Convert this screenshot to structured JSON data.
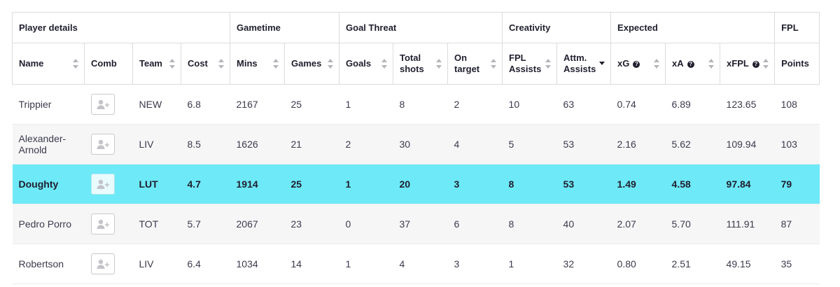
{
  "groups": {
    "player_details": "Player details",
    "gametime": "Gametime",
    "goal_threat": "Goal Threat",
    "creativity": "Creativity",
    "expected": "Expected",
    "fpl": "FPL"
  },
  "columns": {
    "name": "Name",
    "comb": "Comb",
    "team": "Team",
    "cost": "Cost",
    "mins": "Mins",
    "games": "Games",
    "goals": "Goals",
    "total_shots": "Total shots",
    "on_target": "On target",
    "fpl_assists": "FPL Assists",
    "attm_assists": "Attm. Assists",
    "xg": "xG",
    "xa": "xA",
    "xfpl": "xFPL",
    "points": "Points"
  },
  "help_glyph": "?",
  "sort_column": "attm_assists",
  "sort_direction": "descending",
  "highlight_color": "#6ee9f7",
  "rows": [
    {
      "name": "Trippier",
      "team": "NEW",
      "cost": "6.8",
      "mins": "2167",
      "games": "25",
      "goals": "1",
      "total_shots": "8",
      "on_target": "2",
      "fpl_assists": "10",
      "attm_assists": "63",
      "xg": "0.74",
      "xa": "6.89",
      "xfpl": "123.65",
      "points": "108"
    },
    {
      "name": "Alexander-Arnold",
      "team": "LIV",
      "cost": "8.5",
      "mins": "1626",
      "games": "21",
      "goals": "2",
      "total_shots": "30",
      "on_target": "4",
      "fpl_assists": "5",
      "attm_assists": "53",
      "xg": "2.16",
      "xa": "5.62",
      "xfpl": "109.94",
      "points": "103"
    },
    {
      "name": "Doughty",
      "team": "LUT",
      "cost": "4.7",
      "mins": "1914",
      "games": "25",
      "goals": "1",
      "total_shots": "20",
      "on_target": "3",
      "fpl_assists": "8",
      "attm_assists": "53",
      "xg": "1.49",
      "xa": "4.58",
      "xfpl": "97.84",
      "points": "79",
      "highlighted": true
    },
    {
      "name": "Pedro Porro",
      "team": "TOT",
      "cost": "5.7",
      "mins": "2067",
      "games": "23",
      "goals": "0",
      "total_shots": "37",
      "on_target": "6",
      "fpl_assists": "8",
      "attm_assists": "40",
      "xg": "2.07",
      "xa": "5.70",
      "xfpl": "111.91",
      "points": "87"
    },
    {
      "name": "Robertson",
      "team": "LIV",
      "cost": "6.4",
      "mins": "1034",
      "games": "14",
      "goals": "1",
      "total_shots": "4",
      "on_target": "3",
      "fpl_assists": "1",
      "attm_assists": "32",
      "xg": "0.80",
      "xa": "2.51",
      "xfpl": "49.15",
      "points": "35"
    }
  ]
}
